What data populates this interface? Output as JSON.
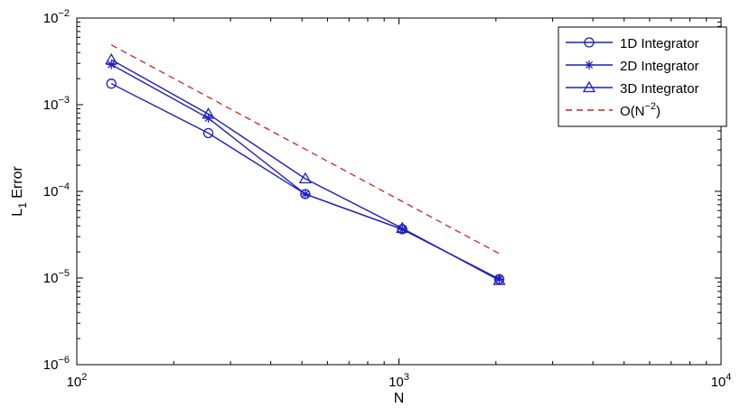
{
  "chart_data": {
    "type": "line",
    "xscale": "log",
    "yscale": "log",
    "xlim": [
      100,
      10000
    ],
    "ylim": [
      1e-06,
      0.01
    ],
    "xlabel": "N",
    "ylabel": "L1 Error",
    "grid": false,
    "legend_position": "top-right",
    "x_ticks": [
      {
        "value": 100,
        "base": "10",
        "exp": "2"
      },
      {
        "value": 1000,
        "base": "10",
        "exp": "3"
      },
      {
        "value": 10000,
        "base": "10",
        "exp": "4"
      }
    ],
    "y_ticks": [
      {
        "value": 1e-06,
        "base": "10",
        "exp": "−6"
      },
      {
        "value": 1e-05,
        "base": "10",
        "exp": "−5"
      },
      {
        "value": 0.0001,
        "base": "10",
        "exp": "−4"
      },
      {
        "value": 0.001,
        "base": "10",
        "exp": "−3"
      },
      {
        "value": 0.01,
        "base": "10",
        "exp": "−2"
      }
    ],
    "series": [
      {
        "name": "1D Integrator",
        "marker": "circle",
        "color": "#1f1fbf",
        "line": "solid",
        "x": [
          128,
          256,
          512,
          1024,
          2048
        ],
        "y": [
          0.00175,
          0.00047,
          9.3e-05,
          3.65e-05,
          9.7e-06
        ]
      },
      {
        "name": "2D Integrator",
        "marker": "star",
        "color": "#1f1fbf",
        "line": "solid",
        "x": [
          128,
          256,
          512,
          1024,
          2048
        ],
        "y": [
          0.0029,
          0.0007,
          9.3e-05,
          3.65e-05,
          9.7e-06
        ]
      },
      {
        "name": "3D Integrator",
        "marker": "triangle",
        "color": "#1f1fbf",
        "line": "solid",
        "x": [
          128,
          256,
          512,
          1024,
          2048
        ],
        "y": [
          0.0033,
          0.00078,
          0.00014,
          3.75e-05,
          9.4e-06
        ]
      },
      {
        "name": "O(N−2)",
        "name_parts": {
          "main": "O(N",
          "sup": "−2",
          "tail": ")"
        },
        "marker": "none",
        "color": "#d42020",
        "line": "dashed",
        "x": [
          128,
          2048
        ],
        "y": [
          0.0049,
          1.91e-05
        ]
      }
    ]
  },
  "ylabel_parts": {
    "main": "L",
    "sub": "1",
    "tail": " Error"
  }
}
